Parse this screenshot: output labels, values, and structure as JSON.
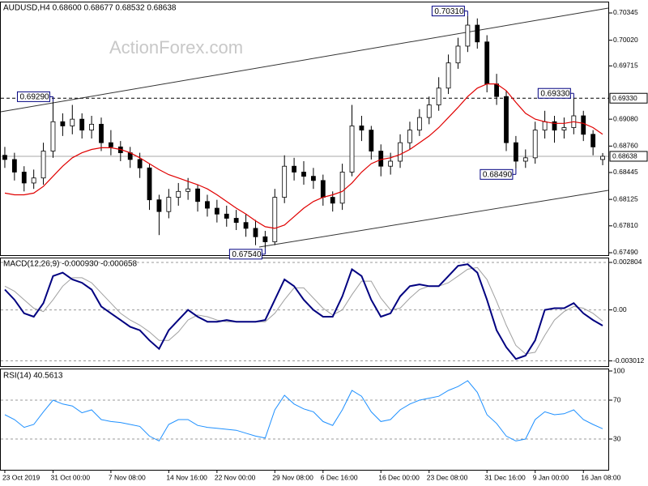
{
  "chart_data": [
    {
      "type": "candlestick",
      "title": "AUDUSD,H4  0.68600 0.68677 0.68532 0.68638",
      "watermark": "ActionForex.com",
      "x": [
        "23 Oct 2019",
        null,
        null,
        null,
        null,
        "31 Oct 00:00",
        null,
        null,
        null,
        null,
        null,
        "7 Nov 08:00",
        null,
        null,
        null,
        null,
        null,
        "14 Nov 16:00",
        null,
        null,
        null,
        null,
        "22 Nov 00:00",
        null,
        null,
        null,
        null,
        null,
        "29 Nov 08:00",
        null,
        null,
        null,
        null,
        "6 Dec 16:00",
        null,
        null,
        null,
        null,
        null,
        "16 Dec 00:00",
        null,
        null,
        null,
        null,
        "23 Dec 08:00",
        null,
        null,
        null,
        null,
        null,
        "31 Dec 16:00",
        null,
        null,
        null,
        null,
        "9 Jan 00:00",
        null,
        null,
        null,
        null,
        "16 Jan 08:00",
        null,
        null
      ],
      "open": [
        0.6865,
        0.686,
        0.6845,
        0.6832,
        0.6838,
        0.687,
        0.6905,
        0.69,
        0.6908,
        0.6895,
        0.6902,
        0.688,
        0.6875,
        0.6868,
        0.686,
        0.685,
        0.6812,
        0.6798,
        0.6815,
        0.6822,
        0.6825,
        0.681,
        0.6802,
        0.6795,
        0.679,
        0.6785,
        0.6778,
        0.6768,
        0.6762,
        0.6815,
        0.6852,
        0.6845,
        0.684,
        0.6835,
        0.6815,
        0.6808,
        0.6845,
        0.69,
        0.6895,
        0.687,
        0.6852,
        0.6858,
        0.688,
        0.6895,
        0.691,
        0.6925,
        0.6945,
        0.6975,
        0.6995,
        0.702,
        0.7,
        0.695,
        0.6935,
        0.688,
        0.6858,
        0.6862,
        0.6895,
        0.6905,
        0.6895,
        0.6898,
        0.6912,
        0.689,
        0.686
      ],
      "high": [
        0.6875,
        0.6868,
        0.6852,
        0.6848,
        0.688,
        0.6929,
        0.6915,
        0.6925,
        0.6915,
        0.6912,
        0.691,
        0.6895,
        0.6882,
        0.6875,
        0.6868,
        0.6855,
        0.6818,
        0.6825,
        0.6832,
        0.6838,
        0.683,
        0.6818,
        0.6812,
        0.6805,
        0.68,
        0.6795,
        0.6788,
        0.6775,
        0.6825,
        0.6865,
        0.6862,
        0.6858,
        0.685,
        0.6842,
        0.6822,
        0.6855,
        0.6925,
        0.6912,
        0.69,
        0.6878,
        0.6868,
        0.689,
        0.6905,
        0.692,
        0.6935,
        0.6958,
        0.6985,
        0.7005,
        0.7031,
        0.7028,
        0.7008,
        0.6962,
        0.6942,
        0.6888,
        0.6872,
        0.6905,
        0.6918,
        0.6912,
        0.691,
        0.6933,
        0.6918,
        0.6895,
        0.68677
      ],
      "low": [
        0.685,
        0.6835,
        0.6822,
        0.6825,
        0.683,
        0.6862,
        0.6888,
        0.689,
        0.6885,
        0.6885,
        0.687,
        0.6865,
        0.6858,
        0.685,
        0.6838,
        0.68,
        0.677,
        0.679,
        0.6805,
        0.6812,
        0.6798,
        0.6792,
        0.6785,
        0.678,
        0.6776,
        0.6768,
        0.6758,
        0.6754,
        0.6758,
        0.6808,
        0.6835,
        0.683,
        0.6825,
        0.6805,
        0.6798,
        0.68,
        0.684,
        0.6882,
        0.686,
        0.684,
        0.6842,
        0.685,
        0.6872,
        0.6888,
        0.6902,
        0.6918,
        0.6938,
        0.6968,
        0.6988,
        0.6992,
        0.694,
        0.6925,
        0.687,
        0.6849,
        0.685,
        0.6855,
        0.6885,
        0.688,
        0.6885,
        0.689,
        0.6882,
        0.6865,
        0.68532
      ],
      "close": [
        0.686,
        0.6845,
        0.6832,
        0.6838,
        0.687,
        0.6905,
        0.69,
        0.6908,
        0.6895,
        0.6902,
        0.688,
        0.6875,
        0.6868,
        0.686,
        0.685,
        0.6812,
        0.6798,
        0.6815,
        0.6822,
        0.6825,
        0.681,
        0.6802,
        0.6795,
        0.679,
        0.6785,
        0.6778,
        0.6768,
        0.6762,
        0.6815,
        0.6852,
        0.6845,
        0.684,
        0.6835,
        0.6815,
        0.6808,
        0.6845,
        0.69,
        0.6895,
        0.687,
        0.6852,
        0.6858,
        0.688,
        0.6895,
        0.691,
        0.6925,
        0.6945,
        0.6975,
        0.6995,
        0.702,
        0.7,
        0.695,
        0.6935,
        0.688,
        0.6858,
        0.6862,
        0.6895,
        0.6905,
        0.6895,
        0.6898,
        0.6912,
        0.689,
        0.6875,
        0.68638
      ],
      "up_color": "#ffffff",
      "down_color": "#000000",
      "ma": {
        "color": "#e00000",
        "values": [
          0.682,
          0.6818,
          0.6818,
          0.682,
          0.6828,
          0.684,
          0.6852,
          0.6862,
          0.6868,
          0.6872,
          0.6874,
          0.6874,
          0.6872,
          0.6868,
          0.6862,
          0.6855,
          0.6848,
          0.6842,
          0.6838,
          0.6834,
          0.683,
          0.6825,
          0.6818,
          0.681,
          0.6802,
          0.6795,
          0.6787,
          0.678,
          0.6778,
          0.6782,
          0.6792,
          0.6802,
          0.681,
          0.6815,
          0.6818,
          0.6822,
          0.6832,
          0.6845,
          0.6855,
          0.686,
          0.6862,
          0.6866,
          0.6872,
          0.688,
          0.6888,
          0.6898,
          0.691,
          0.6922,
          0.6935,
          0.6945,
          0.695,
          0.695,
          0.6942,
          0.6928,
          0.6915,
          0.6908,
          0.6905,
          0.6903,
          0.6903,
          0.6905,
          0.6903,
          0.6898,
          0.689
        ]
      },
      "ylim": [
        0.67461,
        0.7048
      ],
      "yticks": [
        0.70345,
        {
          "value": 0.7002,
          "label": "0.70020"
        },
        0.69715,
        {
          "value": 0.6908,
          "label": "0.69080"
        },
        {
          "value": 0.6876,
          "label": "0.68760"
        },
        0.68445,
        0.68125,
        {
          "value": 0.6781,
          "label": "0.67810"
        },
        {
          "value": 0.6749,
          "label": "0.67490"
        }
      ],
      "level": {
        "value": 0.6933,
        "label": "0.69330"
      },
      "last": 0.68638,
      "annotations": [
        {
          "value": 0.7031,
          "label": "0.70310"
        },
        {
          "value": 0.6929,
          "label": "0.69290"
        },
        {
          "value": 0.6933,
          "label": "0.69330"
        },
        {
          "value": 0.6849,
          "label": "0.68490"
        },
        {
          "value": 0.6754,
          "label": "0.67540"
        }
      ]
    },
    {
      "type": "macd",
      "title": "MACD(12,26,9) -0.000930 -0.000658",
      "macd": {
        "color": "#000080",
        "values": [
          0.0012,
          0.0006,
          -0.0002,
          -0.0004,
          0.0004,
          0.002,
          0.0022,
          0.0018,
          0.0016,
          0.0012,
          0.0002,
          -0.0002,
          -0.0006,
          -0.001,
          -0.0012,
          -0.0018,
          -0.0023,
          -0.0012,
          -0.0006,
          0.0,
          -0.0004,
          -0.0007,
          -0.0007,
          -0.0006,
          -0.0007,
          -0.0007,
          -0.0007,
          -0.0006,
          0.0006,
          0.0018,
          0.0014,
          0.0006,
          0.0,
          -0.0004,
          -0.0004,
          0.0008,
          0.0024,
          0.002,
          0.0006,
          -0.0004,
          -0.0002,
          0.0008,
          0.0014,
          0.0015,
          0.0014,
          0.0014,
          0.002,
          0.0026,
          0.0027,
          0.0022,
          0.0006,
          -0.0012,
          -0.0022,
          -0.0029,
          -0.0027,
          -0.0018,
          0.0,
          0.0001,
          0.0001,
          0.0004,
          -0.0002,
          -0.0006,
          -0.00093
        ]
      },
      "signal": {
        "color": "#a0a0a0",
        "values": [
          0.0014,
          0.0011,
          0.0006,
          0.0001,
          -0.0001,
          0.0006,
          0.0014,
          0.0019,
          0.0019,
          0.0016,
          0.001,
          0.0004,
          -0.0002,
          -0.0006,
          -0.0009,
          -0.0013,
          -0.0018,
          -0.0018,
          -0.0013,
          -0.0006,
          -0.0003,
          -0.0004,
          -0.0006,
          -0.0007,
          -0.0007,
          -0.0007,
          -0.0007,
          -0.0007,
          -0.0002,
          0.0006,
          0.0013,
          0.0013,
          0.0007,
          0.0001,
          -0.0003,
          0.0,
          0.0009,
          0.0017,
          0.0017,
          0.0007,
          0.0,
          0.0001,
          0.0007,
          0.0012,
          0.0014,
          0.0014,
          0.0016,
          0.002,
          0.0024,
          0.0025,
          0.0018,
          0.0005,
          -0.0009,
          -0.0021,
          -0.0026,
          -0.0025,
          -0.0015,
          -0.0006,
          -0.0001,
          0.0002,
          0.0001,
          -0.0002,
          -0.000658
        ]
      },
      "ylim": [
        -0.00332,
        0.00309
      ],
      "yticks": [
        0.002804,
        {
          "value": 0,
          "label": "0.00"
        },
        -0.003012
      ],
      "grid": "dashed"
    },
    {
      "type": "rsi",
      "title": "RSI(14) 40.5613",
      "color": "#1e90ff",
      "values": [
        55,
        50,
        42,
        45,
        58,
        70,
        66,
        64,
        57,
        60,
        50,
        48,
        47,
        45,
        43,
        33,
        28,
        45,
        50,
        50,
        44,
        42,
        41,
        40,
        39,
        36,
        33,
        31,
        60,
        75,
        66,
        61,
        58,
        48,
        44,
        60,
        80,
        74,
        58,
        48,
        50,
        60,
        66,
        70,
        72,
        74,
        80,
        84,
        90,
        78,
        55,
        46,
        33,
        28,
        30,
        50,
        58,
        55,
        56,
        60,
        50,
        45,
        40.5613
      ],
      "ylim": [
        0,
        100
      ],
      "yticks": [
        100,
        70,
        30
      ],
      "grid": "dashed"
    }
  ]
}
